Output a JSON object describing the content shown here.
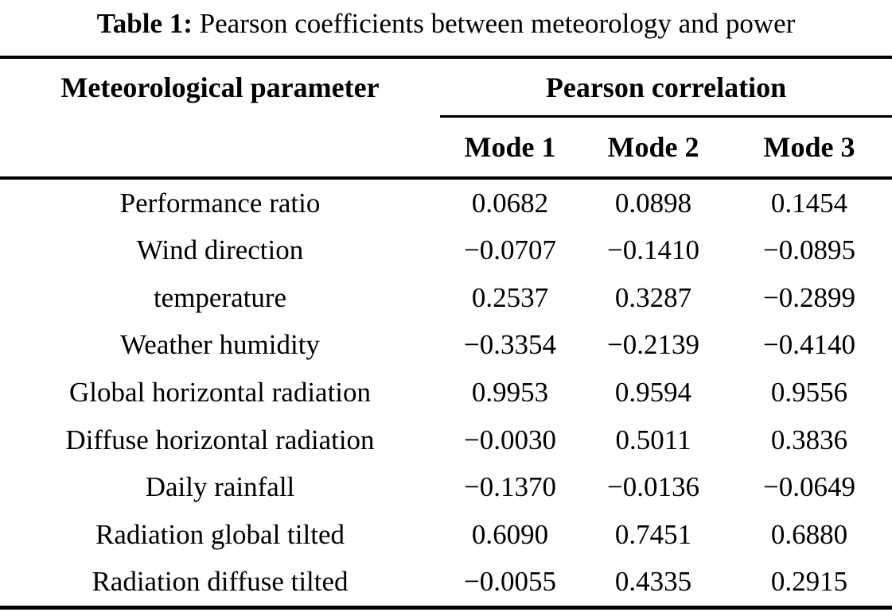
{
  "table": {
    "caption": {
      "label": "Table 1:",
      "text": "Pearson coefficients between meteorology and power"
    },
    "header": {
      "parameter_column": "Meteorological parameter",
      "group_column": "Pearson correlation",
      "modes": [
        "Mode 1",
        "Mode 2",
        "Mode 3"
      ]
    },
    "rows": [
      {
        "parameter": "Performance ratio",
        "values": [
          "0.0682",
          "0.0898",
          "0.1454"
        ]
      },
      {
        "parameter": "Wind direction",
        "values": [
          "−0.0707",
          "−0.1410",
          "−0.0895"
        ]
      },
      {
        "parameter": "temperature",
        "values": [
          "0.2537",
          "0.3287",
          "−0.2899"
        ]
      },
      {
        "parameter": "Weather humidity",
        "values": [
          "−0.3354",
          "−0.2139",
          "−0.4140"
        ]
      },
      {
        "parameter": "Global horizontal radiation",
        "values": [
          "0.9953",
          "0.9594",
          "0.9556"
        ]
      },
      {
        "parameter": "Diffuse horizontal radiation",
        "values": [
          "−0.0030",
          "0.5011",
          "0.3836"
        ]
      },
      {
        "parameter": "Daily rainfall",
        "values": [
          "−0.1370",
          "−0.0136",
          "−0.0649"
        ]
      },
      {
        "parameter": "Radiation global tilted",
        "values": [
          "0.6090",
          "0.7451",
          "0.6880"
        ]
      },
      {
        "parameter": "Radiation diffuse tilted",
        "values": [
          "−0.0055",
          "0.4335",
          "0.2915"
        ]
      }
    ],
    "colors": {
      "text": "#000000",
      "background": "#ffffff"
    }
  }
}
